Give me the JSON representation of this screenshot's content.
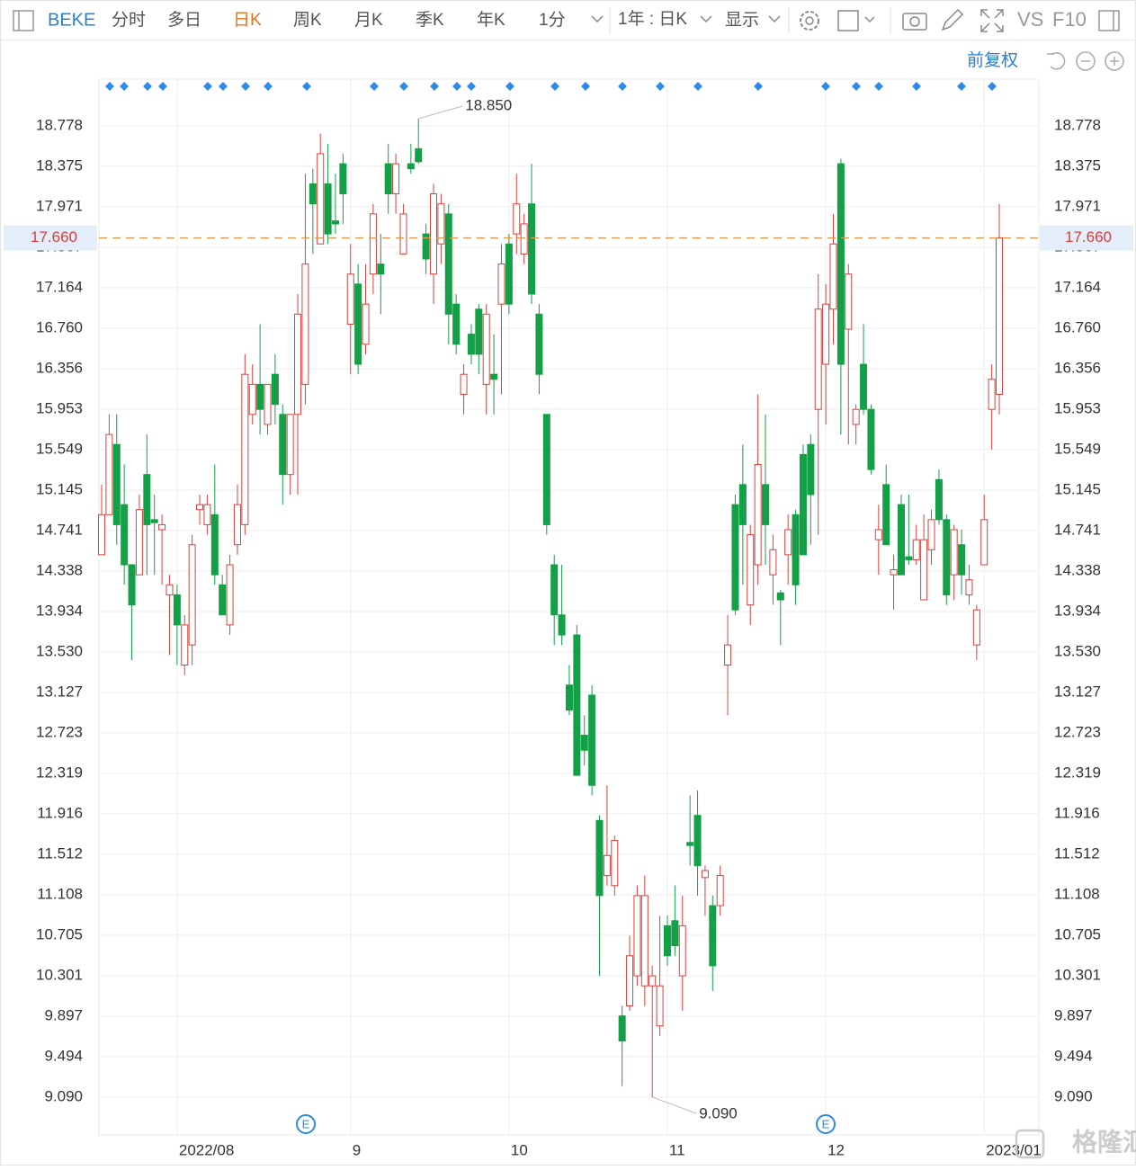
{
  "toolbar": {
    "symbol": "BEKE",
    "periods": [
      "分时",
      "多日",
      "日K",
      "周K",
      "月K",
      "季K",
      "年K",
      "1分"
    ],
    "active_index": 2,
    "range": "1年 : 日K",
    "display": "显示",
    "vs": "VS",
    "f10": "F10",
    "adjust": "前复权"
  },
  "watermark": "格隆汇",
  "chart_data": {
    "type": "candlestick",
    "symbol_event_marker": "E",
    "categories": [
      null,
      null,
      null,
      null,
      null,
      null,
      null,
      null,
      null,
      null,
      "2022/08",
      null,
      null,
      null,
      null,
      null,
      null,
      null,
      null,
      null,
      null,
      null,
      null,
      null,
      null,
      null,
      null,
      null,
      null,
      null,
      null,
      null,
      null,
      "9",
      null,
      null,
      null,
      null,
      null,
      null,
      null,
      null,
      null,
      null,
      null,
      null,
      null,
      null,
      null,
      null,
      null,
      null,
      null,
      null,
      "10",
      null,
      null,
      null,
      null,
      null,
      null,
      null,
      null,
      null,
      null,
      null,
      null,
      null,
      null,
      null,
      null,
      null,
      null,
      null,
      null,
      "11",
      null,
      null,
      null,
      null,
      null,
      null,
      null,
      null,
      null,
      null,
      null,
      null,
      null,
      null,
      null,
      null,
      null,
      null,
      null,
      null,
      "12",
      null,
      null,
      null,
      null,
      null,
      null,
      null,
      null,
      null,
      null,
      null,
      null,
      null,
      null,
      null,
      null,
      null,
      null,
      null,
      null,
      "2023/01",
      null,
      null
    ],
    "open": [
      14.5,
      14.9,
      15.6,
      15.0,
      14.4,
      14.3,
      15.3,
      14.85,
      14.75,
      14.1,
      14.1,
      13.4,
      13.6,
      14.95,
      14.8,
      14.9,
      14.2,
      13.8,
      14.6,
      14.8,
      15.9,
      16.2,
      15.8,
      16.3,
      15.9,
      15.3,
      15.9,
      16.2,
      18.2,
      17.6,
      18.2,
      17.83,
      18.4,
      16.8,
      17.2,
      16.6,
      17.3,
      17.4,
      18.4,
      18.1,
      17.5,
      18.4,
      18.55,
      17.7,
      17.3,
      17.6,
      17.9,
      17.0,
      16.1,
      16.7,
      16.95,
      16.2,
      16.3,
      17.0,
      17.6,
      17.7,
      17.5,
      18.0,
      16.9,
      15.9,
      14.4,
      13.9,
      13.2,
      13.7,
      12.7,
      13.1,
      11.85,
      11.3,
      11.2,
      9.9,
      10.0,
      10.3,
      10.2,
      10.2,
      9.8,
      10.8,
      10.85,
      10.3,
      11.63,
      11.9,
      11.28,
      11.0,
      11.0,
      13.4,
      15.0,
      15.2,
      14.0,
      14.4,
      15.2,
      14.3,
      14.12,
      14.5,
      14.9,
      15.5,
      15.6,
      15.95,
      16.4,
      16.95,
      18.4,
      16.75,
      15.8,
      16.4,
      15.95,
      14.65,
      15.2,
      14.3,
      15.0,
      14.48,
      14.45,
      14.05,
      14.55,
      15.25,
      14.85,
      14.3,
      14.6,
      14.1,
      13.6,
      14.4,
      15.95,
      16.1
    ],
    "high": [
      15.2,
      15.9,
      15.9,
      15.4,
      14.4,
      15.1,
      15.7,
      15.1,
      14.9,
      14.3,
      14.2,
      13.9,
      14.7,
      15.1,
      15.1,
      15.4,
      14.3,
      14.5,
      15.2,
      16.5,
      16.4,
      16.8,
      16.2,
      16.5,
      16.0,
      15.9,
      17.1,
      18.3,
      18.35,
      18.7,
      18.6,
      18.3,
      18.5,
      17.6,
      17.4,
      17.4,
      18.0,
      17.7,
      18.6,
      18.5,
      18.0,
      18.6,
      18.85,
      17.8,
      18.2,
      18.1,
      18.0,
      17.1,
      16.4,
      16.8,
      17.0,
      17.0,
      16.7,
      17.6,
      17.7,
      18.3,
      17.9,
      18.4,
      17.0,
      15.9,
      14.5,
      14.4,
      13.4,
      13.8,
      12.9,
      13.2,
      11.9,
      12.2,
      11.7,
      10.0,
      10.7,
      11.2,
      11.3,
      10.4,
      10.9,
      10.9,
      11.2,
      11.1,
      12.1,
      12.15,
      11.4,
      11.1,
      11.4,
      13.9,
      15.1,
      15.6,
      14.8,
      16.1,
      15.9,
      14.7,
      14.15,
      14.9,
      14.95,
      15.6,
      15.7,
      17.3,
      17.2,
      17.9,
      18.45,
      17.4,
      16.0,
      16.8,
      16.0,
      15.0,
      15.4,
      14.5,
      15.1,
      15.1,
      14.8,
      14.9,
      14.95,
      15.35,
      14.9,
      14.8,
      14.75,
      14.4,
      14.0,
      15.1,
      16.4,
      18.0
    ],
    "low": [
      14.5,
      14.9,
      14.6,
      14.2,
      13.45,
      14.3,
      14.3,
      14.3,
      14.2,
      13.5,
      13.4,
      13.3,
      13.4,
      14.8,
      14.7,
      14.2,
      13.9,
      13.7,
      14.5,
      14.7,
      15.8,
      15.7,
      15.7,
      15.8,
      15.0,
      15.1,
      15.1,
      16.0,
      17.5,
      17.6,
      17.6,
      17.7,
      17.8,
      16.3,
      16.3,
      16.5,
      17.1,
      16.9,
      17.9,
      17.9,
      17.5,
      18.3,
      18.4,
      17.3,
      17.0,
      17.4,
      16.6,
      16.5,
      15.9,
      16.4,
      16.3,
      15.9,
      15.9,
      16.1,
      16.9,
      17.5,
      17.4,
      17.0,
      16.1,
      14.7,
      13.6,
      13.6,
      12.9,
      12.3,
      12.4,
      12.1,
      10.3,
      11.2,
      11.1,
      9.2,
      9.95,
      10.2,
      10.0,
      9.09,
      9.7,
      10.4,
      10.5,
      9.95,
      11.4,
      11.1,
      10.9,
      10.15,
      10.9,
      12.9,
      13.9,
      14.2,
      13.8,
      14.2,
      14.4,
      14.0,
      13.6,
      14.2,
      14.0,
      14.5,
      14.6,
      14.7,
      15.8,
      16.6,
      15.7,
      15.6,
      15.6,
      15.9,
      15.3,
      14.3,
      14.6,
      13.95,
      14.3,
      14.4,
      14.4,
      14.05,
      14.4,
      14.8,
      14.0,
      14.05,
      14.1,
      14.0,
      13.45,
      14.4,
      15.55,
      15.9
    ],
    "close": [
      14.9,
      15.7,
      14.8,
      14.4,
      14.0,
      14.95,
      14.8,
      14.82,
      14.8,
      14.2,
      13.8,
      13.8,
      14.6,
      15.0,
      15.0,
      14.3,
      13.9,
      14.4,
      15.0,
      16.3,
      16.2,
      15.95,
      16.2,
      16.0,
      15.3,
      15.9,
      16.9,
      17.4,
      18.0,
      18.5,
      17.7,
      17.8,
      18.1,
      17.3,
      16.4,
      17.0,
      17.9,
      17.3,
      18.1,
      18.4,
      17.9,
      18.35,
      18.42,
      17.45,
      18.1,
      18.0,
      16.9,
      16.6,
      16.3,
      16.5,
      16.5,
      16.9,
      16.25,
      17.4,
      17.0,
      18.0,
      17.8,
      17.1,
      16.3,
      14.8,
      13.9,
      13.7,
      12.95,
      12.3,
      12.55,
      12.2,
      11.1,
      11.5,
      11.65,
      9.65,
      10.5,
      11.1,
      11.1,
      10.3,
      10.2,
      10.5,
      10.6,
      10.8,
      11.6,
      11.4,
      11.35,
      10.4,
      11.3,
      13.6,
      13.95,
      14.8,
      14.7,
      15.4,
      14.8,
      14.55,
      14.05,
      14.75,
      14.2,
      14.5,
      15.1,
      16.95,
      17.0,
      17.6,
      16.4,
      17.3,
      15.95,
      15.95,
      15.35,
      14.75,
      14.6,
      14.35,
      14.3,
      14.45,
      14.65,
      14.65,
      14.85,
      14.85,
      14.1,
      14.75,
      14.3,
      14.25,
      13.95,
      14.85,
      16.25,
      17.66
    ],
    "up_color": "#d9403c",
    "down_color": "#13a047",
    "ylim": [
      8.713,
      19.244
    ],
    "yticks": [
      18.778,
      18.375,
      17.971,
      17.567,
      17.164,
      {
        "value": 16.76,
        "label": "16.760"
      },
      16.356,
      15.953,
      15.549,
      15.145,
      14.741,
      14.338,
      13.934,
      {
        "value": 13.53,
        "label": "13.530"
      },
      13.127,
      12.723,
      12.319,
      11.916,
      11.512,
      11.108,
      10.705,
      10.301,
      9.897,
      9.494,
      {
        "value": 9.09,
        "label": "9.090"
      }
    ],
    "grid": true,
    "last_price": {
      "value": 17.66,
      "label": "17.660"
    },
    "max_annotation": {
      "value": 18.85,
      "label": "18.850"
    },
    "min_annotation": {
      "value": 9.09,
      "label": "9.090"
    }
  }
}
